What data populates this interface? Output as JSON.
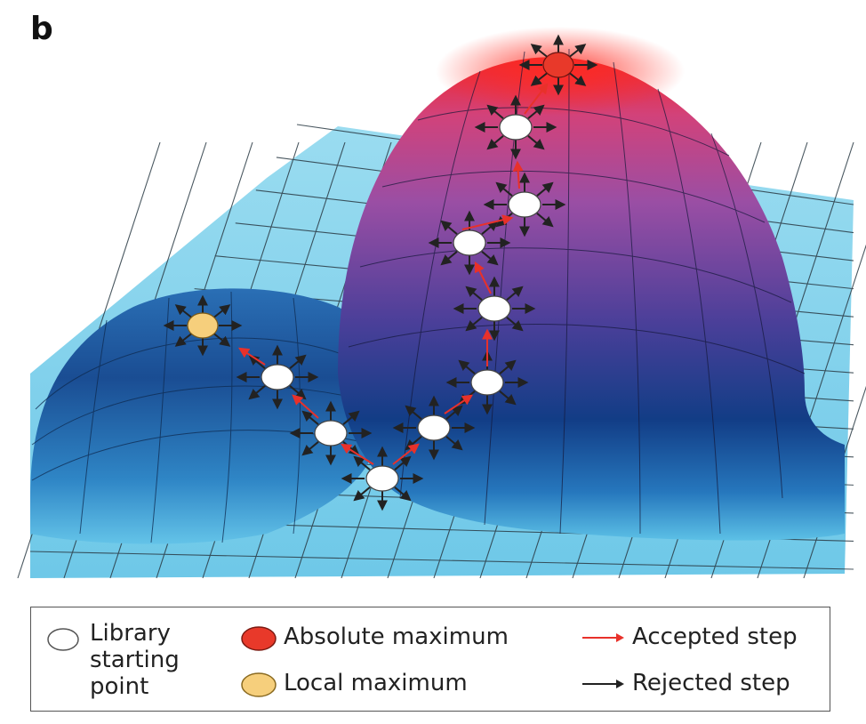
{
  "panel_label": "b",
  "legend": {
    "library_start": "Library starting point",
    "library_start_lines": [
      "Library",
      "starting",
      "point"
    ],
    "absolute_max": "Absolute maximum",
    "local_max": "Local maximum",
    "accepted": "Accepted step",
    "rejected": "Rejected step"
  },
  "colors": {
    "plane": "#7fd0ea",
    "grid": "#2a3a44",
    "accepted_arrow": "#e8312a",
    "rejected_arrow": "#222222",
    "start_node": "#ffffff",
    "absolute_max_node": "#e8392a",
    "local_max_node": "#f6cf7c",
    "big_peak_top": "#e3262f",
    "big_peak_mid": "#7a3f9a",
    "big_peak_base": "#0f3f86",
    "small_hill_top": "#1b4f93",
    "small_hill_base": "#3a95cf"
  }
}
